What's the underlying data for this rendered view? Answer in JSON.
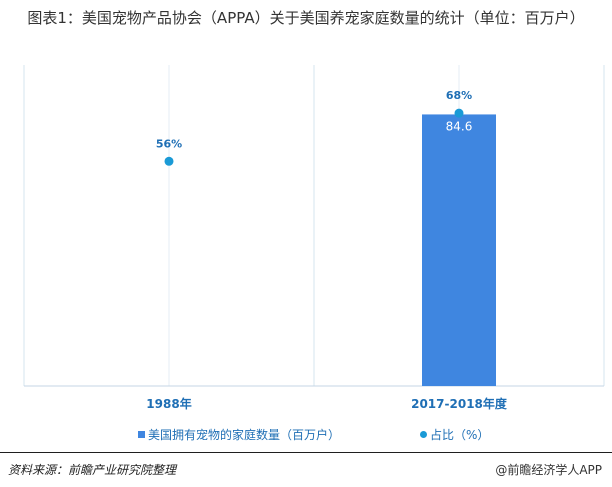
{
  "title": "图表1：美国宠物产品协会（APPA）关于美国养宠家庭数量的统计（单位：百万户）",
  "chart_data": {
    "type": "bar",
    "categories": [
      "1988年",
      "2017-2018年度"
    ],
    "series": [
      {
        "name": "美国拥有宠物的家庭数量（百万户）",
        "kind": "bar",
        "axis": "left",
        "values": [
          null,
          84.6
        ],
        "data_labels": [
          "",
          "84.6"
        ],
        "color": "#3f86e0"
      },
      {
        "name": "占比（%）",
        "kind": "point",
        "axis": "right",
        "values": [
          56,
          68
        ],
        "data_labels": [
          "56%",
          "68%"
        ],
        "color": "#1a9ad6"
      }
    ],
    "ylim_left": [
      0,
      100
    ],
    "ylim_right": [
      0,
      80
    ],
    "legend_position": "bottom",
    "grid": "vertical"
  },
  "legend": {
    "bar_label": "美国拥有宠物的家庭数量（百万户）",
    "dot_label": "占比（%）"
  },
  "footer": {
    "source": "资料来源：前瞻产业研究院整理",
    "brand": "@前瞻经济学人APP"
  }
}
